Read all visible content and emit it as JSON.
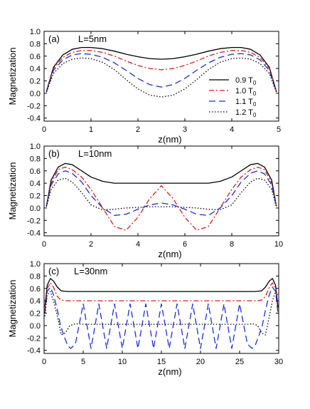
{
  "chart_data": [
    {
      "type": "line",
      "panel_label": "(a)",
      "annotation": "L=5nm",
      "xlabel": "z(nm)",
      "ylabel": "Magnetization",
      "xlim": [
        0,
        5
      ],
      "ylim": [
        -0.45,
        1.0
      ],
      "xticks": [
        0,
        1,
        2,
        3,
        4,
        5
      ],
      "xtick_labels": [
        "0",
        "1",
        "2",
        "3",
        "4",
        "5"
      ],
      "yticks": [
        -0.4,
        -0.2,
        0.0,
        0.2,
        0.4,
        0.6,
        0.8,
        1.0
      ],
      "ytick_labels": [
        "-0.4",
        "-0.2",
        "0.0",
        "0.2",
        "0.4",
        "0.6",
        "0.8",
        "1.0"
      ],
      "legend": {
        "placement": "right",
        "entries": [
          {
            "text": "0.9 T",
            "sub": "0"
          },
          {
            "text": "1.0 T",
            "sub": "0"
          },
          {
            "text": "1.1 T",
            "sub": "0"
          },
          {
            "text": "1.2 T",
            "sub": "0"
          }
        ]
      },
      "series": [
        {
          "color": "#000000",
          "dash": "solid",
          "x": [
            0.05,
            0.2,
            0.4,
            0.6,
            0.8,
            1.0,
            1.25,
            1.5,
            1.75,
            2.0,
            2.25,
            2.5,
            2.75,
            3.0,
            3.25,
            3.5,
            3.75,
            4.0,
            4.2,
            4.4,
            4.6,
            4.8,
            4.95
          ],
          "y": [
            0.03,
            0.42,
            0.62,
            0.71,
            0.74,
            0.74,
            0.72,
            0.68,
            0.63,
            0.59,
            0.56,
            0.55,
            0.56,
            0.59,
            0.63,
            0.68,
            0.72,
            0.74,
            0.74,
            0.71,
            0.62,
            0.42,
            0.03
          ]
        },
        {
          "color": "#d0201a",
          "dash": "dashdot",
          "x": [
            0.05,
            0.2,
            0.4,
            0.6,
            0.8,
            1.0,
            1.25,
            1.5,
            1.75,
            2.0,
            2.25,
            2.5,
            2.75,
            3.0,
            3.25,
            3.5,
            3.75,
            4.0,
            4.2,
            4.4,
            4.6,
            4.8,
            4.95
          ],
          "y": [
            0.03,
            0.4,
            0.58,
            0.66,
            0.69,
            0.69,
            0.66,
            0.6,
            0.52,
            0.45,
            0.4,
            0.38,
            0.4,
            0.45,
            0.52,
            0.6,
            0.66,
            0.69,
            0.69,
            0.66,
            0.58,
            0.4,
            0.03
          ]
        },
        {
          "color": "#1a2fd6",
          "dash": "dashed",
          "x": [
            0.05,
            0.2,
            0.4,
            0.6,
            0.8,
            1.0,
            1.25,
            1.5,
            1.75,
            2.0,
            2.25,
            2.5,
            2.75,
            3.0,
            3.25,
            3.5,
            3.75,
            4.0,
            4.2,
            4.4,
            4.6,
            4.8,
            4.95
          ],
          "y": [
            0.02,
            0.37,
            0.54,
            0.62,
            0.64,
            0.63,
            0.58,
            0.49,
            0.37,
            0.24,
            0.14,
            0.1,
            0.14,
            0.24,
            0.37,
            0.49,
            0.58,
            0.63,
            0.64,
            0.62,
            0.54,
            0.37,
            0.02
          ]
        },
        {
          "color": "#000000",
          "dash": "dotted",
          "x": [
            0.05,
            0.2,
            0.4,
            0.6,
            0.8,
            1.0,
            1.25,
            1.5,
            1.75,
            2.0,
            2.25,
            2.5,
            2.75,
            3.0,
            3.25,
            3.5,
            3.75,
            4.0,
            4.2,
            4.4,
            4.6,
            4.8,
            4.95
          ],
          "y": [
            0.02,
            0.32,
            0.48,
            0.55,
            0.57,
            0.56,
            0.5,
            0.38,
            0.22,
            0.07,
            -0.03,
            -0.06,
            -0.03,
            0.07,
            0.22,
            0.38,
            0.5,
            0.56,
            0.57,
            0.55,
            0.48,
            0.32,
            0.02
          ]
        }
      ]
    },
    {
      "type": "line",
      "panel_label": "(b)",
      "annotation": "L=10nm",
      "xlabel": "z(nm)",
      "ylabel": "Magnetization",
      "xlim": [
        0,
        10
      ],
      "ylim": [
        -0.45,
        1.0
      ],
      "xticks": [
        0,
        2,
        4,
        6,
        8,
        10
      ],
      "xtick_labels": [
        "0",
        "2",
        "4",
        "6",
        "8",
        "10"
      ],
      "yticks": [
        -0.4,
        -0.2,
        0.0,
        0.2,
        0.4,
        0.6,
        0.8,
        1.0
      ],
      "ytick_labels": [
        "-0.4",
        "-0.2",
        "0.0",
        "0.2",
        "0.4",
        "0.6",
        "0.8",
        "1.0"
      ],
      "series": [
        {
          "color": "#000000",
          "dash": "solid",
          "x": [
            0.1,
            0.3,
            0.6,
            0.9,
            1.2,
            1.6,
            2.0,
            2.5,
            3.0,
            4.0,
            5.0,
            6.0,
            7.0,
            7.5,
            8.0,
            8.4,
            8.8,
            9.1,
            9.4,
            9.7,
            9.9
          ],
          "y": [
            0.03,
            0.45,
            0.66,
            0.72,
            0.7,
            0.6,
            0.5,
            0.43,
            0.4,
            0.4,
            0.4,
            0.4,
            0.4,
            0.43,
            0.5,
            0.6,
            0.7,
            0.72,
            0.66,
            0.45,
            0.03
          ]
        },
        {
          "color": "#d0201a",
          "dash": "dashdot",
          "x": [
            0.1,
            0.3,
            0.6,
            0.9,
            1.2,
            1.6,
            2.0,
            2.5,
            3.0,
            3.5,
            4.0,
            4.5,
            5.0,
            5.5,
            6.0,
            6.5,
            7.0,
            7.5,
            8.0,
            8.4,
            8.8,
            9.1,
            9.4,
            9.7,
            9.9
          ],
          "y": [
            0.03,
            0.4,
            0.62,
            0.66,
            0.62,
            0.5,
            0.3,
            0.0,
            -0.3,
            -0.36,
            -0.15,
            0.15,
            0.36,
            0.15,
            -0.15,
            -0.36,
            -0.3,
            0.0,
            0.3,
            0.5,
            0.62,
            0.66,
            0.62,
            0.4,
            0.03
          ]
        },
        {
          "color": "#1a2fd6",
          "dash": "dashed",
          "x": [
            0.1,
            0.3,
            0.6,
            0.9,
            1.2,
            1.6,
            2.0,
            2.5,
            3.0,
            3.5,
            4.0,
            4.5,
            5.0,
            5.5,
            6.0,
            6.5,
            7.0,
            7.5,
            8.0,
            8.4,
            8.8,
            9.1,
            9.4,
            9.7,
            9.9
          ],
          "y": [
            0.03,
            0.37,
            0.55,
            0.6,
            0.56,
            0.42,
            0.2,
            0.0,
            -0.12,
            -0.1,
            -0.02,
            0.05,
            0.08,
            0.05,
            -0.02,
            -0.1,
            -0.12,
            0.0,
            0.2,
            0.42,
            0.56,
            0.6,
            0.55,
            0.37,
            0.03
          ]
        },
        {
          "color": "#000000",
          "dash": "dotted",
          "x": [
            0.1,
            0.3,
            0.6,
            0.9,
            1.2,
            1.6,
            2.0,
            2.5,
            3.0,
            3.5,
            4.0,
            4.5,
            5.0,
            5.5,
            6.0,
            6.5,
            7.0,
            7.5,
            8.0,
            8.4,
            8.8,
            9.1,
            9.4,
            9.7,
            9.9
          ],
          "y": [
            0.02,
            0.3,
            0.45,
            0.48,
            0.42,
            0.25,
            0.05,
            -0.03,
            -0.02,
            0.0,
            0.01,
            0.02,
            0.02,
            0.02,
            0.01,
            0.0,
            -0.02,
            -0.03,
            0.05,
            0.25,
            0.42,
            0.48,
            0.45,
            0.3,
            0.02
          ]
        }
      ]
    },
    {
      "type": "line",
      "panel_label": "(c)",
      "annotation": "L=30nm",
      "xlabel": "z(nm)",
      "ylabel": "Magnetization",
      "xlim": [
        0,
        30
      ],
      "ylim": [
        -0.45,
        1.0
      ],
      "xticks": [
        0,
        5,
        10,
        15,
        20,
        25,
        30
      ],
      "xtick_labels": [
        "0",
        "5",
        "10",
        "15",
        "20",
        "25",
        "30"
      ],
      "yticks": [
        -0.4,
        -0.2,
        0.0,
        0.2,
        0.4,
        0.6,
        0.8,
        1.0
      ],
      "ytick_labels": [
        "-0.4",
        "-0.2",
        "0.0",
        "0.2",
        "0.4",
        "0.6",
        "0.8",
        "1.0"
      ],
      "series": [
        {
          "color": "#000000",
          "dash": "solid",
          "x": [
            0.1,
            0.4,
            0.8,
            1.2,
            1.7,
            2.2,
            3.0,
            5.0,
            10.0,
            15.0,
            20.0,
            25.0,
            27.0,
            27.8,
            28.3,
            28.8,
            29.2,
            29.6,
            29.9
          ],
          "y": [
            0.3,
            0.65,
            0.76,
            0.72,
            0.62,
            0.56,
            0.55,
            0.55,
            0.55,
            0.55,
            0.55,
            0.55,
            0.55,
            0.56,
            0.62,
            0.72,
            0.76,
            0.65,
            0.3
          ]
        },
        {
          "color": "#d0201a",
          "dash": "dashdot",
          "x": [
            0.1,
            0.4,
            0.8,
            1.2,
            1.7,
            2.2,
            3.0,
            5.0,
            10.0,
            15.0,
            20.0,
            25.0,
            27.0,
            27.8,
            28.3,
            28.8,
            29.2,
            29.6,
            29.9
          ],
          "y": [
            0.25,
            0.6,
            0.69,
            0.62,
            0.47,
            0.41,
            0.4,
            0.4,
            0.4,
            0.4,
            0.4,
            0.4,
            0.4,
            0.41,
            0.47,
            0.62,
            0.69,
            0.6,
            0.25
          ]
        },
        {
          "color": "#1a2fd6",
          "dash": "dashed",
          "x": [
            0.1,
            0.4,
            0.8,
            1.2,
            1.7,
            2.1,
            2.5,
            3.0,
            3.4,
            4.0,
            5.0,
            6.0,
            7.0,
            8.0,
            9.0,
            10.0,
            11.0,
            12.0,
            13.0,
            14.0,
            15.0,
            16.0,
            17.0,
            18.0,
            19.0,
            20.0,
            21.0,
            22.0,
            23.0,
            24.0,
            25.0,
            26.0,
            26.6,
            27.0,
            27.5,
            27.9,
            28.3,
            28.8,
            29.2,
            29.6,
            29.9
          ],
          "y": [
            0.2,
            0.55,
            0.62,
            0.5,
            0.25,
            0.0,
            -0.15,
            -0.32,
            -0.37,
            -0.3,
            0.35,
            -0.37,
            0.35,
            -0.37,
            0.35,
            -0.37,
            0.35,
            -0.37,
            0.35,
            -0.37,
            0.35,
            -0.37,
            0.35,
            -0.37,
            0.35,
            -0.37,
            0.35,
            -0.37,
            0.35,
            -0.37,
            0.35,
            -0.3,
            -0.37,
            -0.32,
            -0.15,
            0.0,
            0.25,
            0.5,
            0.62,
            0.55,
            0.2
          ]
        },
        {
          "color": "#000000",
          "dash": "dotted",
          "x": [
            0.1,
            0.4,
            0.8,
            1.2,
            1.7,
            2.2,
            2.7,
            3.3,
            4.0,
            5.0,
            10.0,
            15.0,
            20.0,
            25.0,
            26.0,
            26.7,
            27.3,
            27.8,
            28.3,
            28.8,
            29.2,
            29.6,
            29.9
          ],
          "y": [
            0.15,
            0.5,
            0.55,
            0.4,
            0.15,
            -0.15,
            -0.12,
            0.0,
            0.03,
            0.02,
            0.02,
            0.02,
            0.02,
            0.02,
            0.02,
            0.03,
            0.0,
            -0.12,
            -0.15,
            0.15,
            0.4,
            0.55,
            0.5
          ]
        }
      ]
    }
  ]
}
